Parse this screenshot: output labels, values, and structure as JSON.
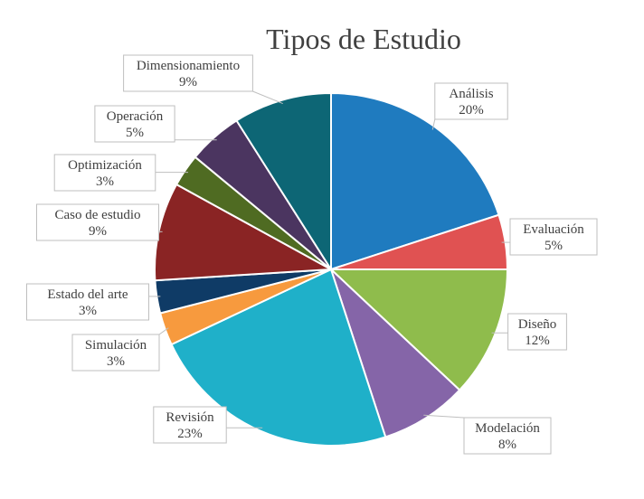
{
  "chart_data": {
    "type": "pie",
    "title": "Tipos de Estudio",
    "slices": [
      {
        "label": "Análisis",
        "value": 20,
        "value_label": "20%",
        "color": "#1f7bbf"
      },
      {
        "label": "Evaluación",
        "value": 5,
        "value_label": "5%",
        "color": "#e05252"
      },
      {
        "label": "Diseño",
        "value": 12,
        "value_label": "12%",
        "color": "#8fbc4c"
      },
      {
        "label": "Modelación",
        "value": 8,
        "value_label": "8%",
        "color": "#8565a8"
      },
      {
        "label": "Revisión",
        "value": 23,
        "value_label": "23%",
        "color": "#1fb0c9"
      },
      {
        "label": "Simulación",
        "value": 3,
        "value_label": "3%",
        "color": "#f79a3e"
      },
      {
        "label": "Estado del arte",
        "value": 3,
        "value_label": "3%",
        "color": "#0f3b66"
      },
      {
        "label": "Caso de estudio",
        "value": 9,
        "value_label": "9%",
        "color": "#8a2424"
      },
      {
        "label": "Optimización",
        "value": 3,
        "value_label": "3%",
        "color": "#4f6b22"
      },
      {
        "label": "Operación",
        "value": 5,
        "value_label": "5%",
        "color": "#4b3560"
      },
      {
        "label": "Dimensionamiento",
        "value": 9,
        "value_label": "9%",
        "color": "#0d6675"
      }
    ],
    "legend": "none",
    "labels": "callouts"
  }
}
